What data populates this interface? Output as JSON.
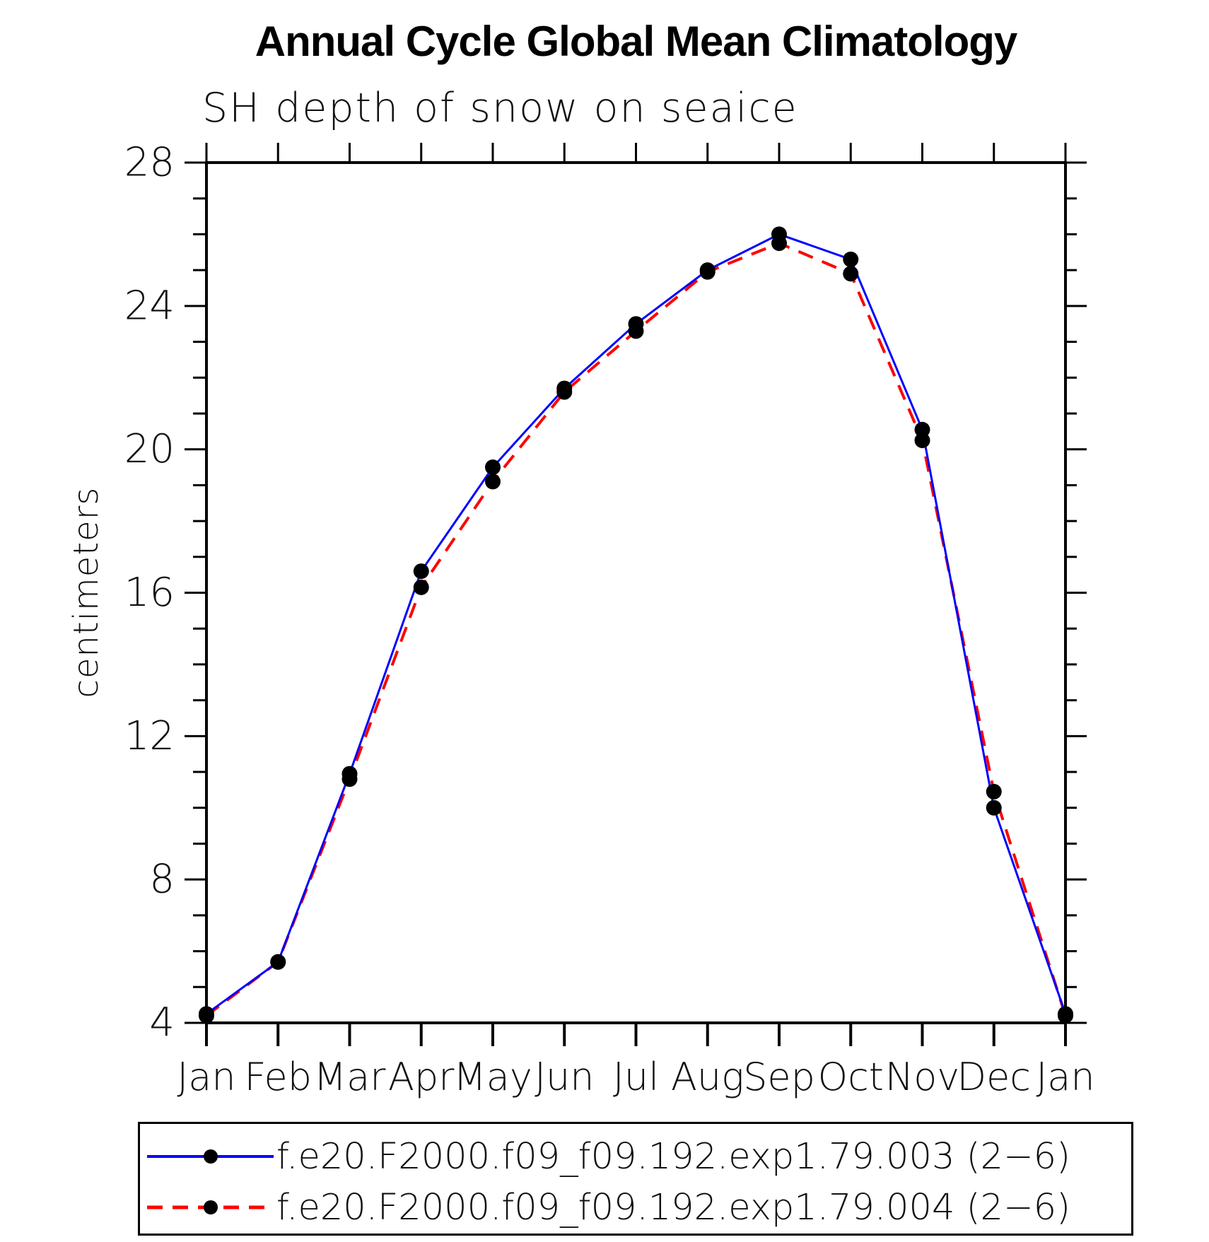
{
  "chart_data": {
    "type": "line",
    "title": "Annual Cycle Global Mean Climatology",
    "subtitle": "SH depth of snow on seaice",
    "ylabel": "centimeters",
    "categories": [
      "Jan",
      "Feb",
      "Mar",
      "Apr",
      "May",
      "Jun",
      "Jul",
      "Aug",
      "Sep",
      "Oct",
      "Nov",
      "Dec",
      "Jan"
    ],
    "ylim": [
      4,
      28
    ],
    "y_major_step": 4,
    "y_minor_step": 1,
    "grid": false,
    "legend_position": "bottom",
    "marker": "filled-circle",
    "marker_color": "#000000",
    "series": [
      {
        "name": "f.e20.F2000.f09_f09.192.exp1.79.003 (2−6)",
        "color": "#0000ff",
        "style": "solid",
        "values": [
          4.25,
          5.7,
          10.95,
          16.6,
          19.5,
          21.7,
          23.5,
          25.0,
          26.0,
          25.3,
          20.55,
          10.0,
          4.25
        ]
      },
      {
        "name": "f.e20.F2000.f09_f09.192.exp1.79.004 (2−6)",
        "color": "#ff0000",
        "style": "dashed",
        "values": [
          4.2,
          5.7,
          10.8,
          16.15,
          19.1,
          21.6,
          23.3,
          24.95,
          25.75,
          24.9,
          20.25,
          10.45,
          4.2
        ]
      }
    ]
  }
}
